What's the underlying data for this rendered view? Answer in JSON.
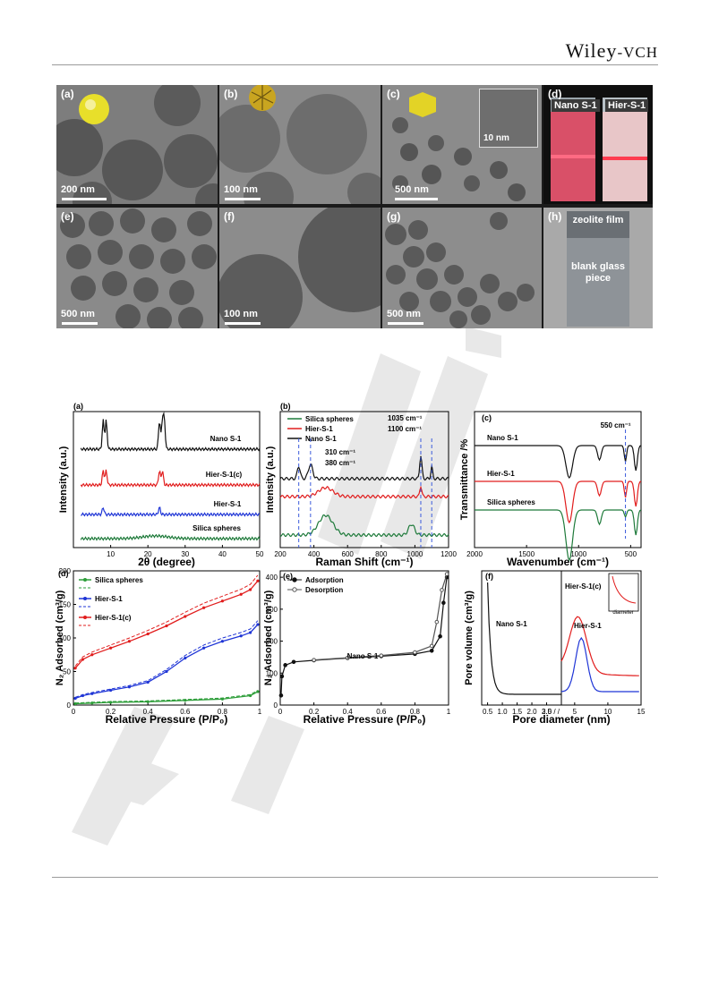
{
  "header": {
    "brand_main": "Wiley",
    "brand_suffix": "-VCH"
  },
  "micrographs": {
    "tiles": [
      {
        "label": "(a)",
        "scale": "200 nm"
      },
      {
        "label": "(b)",
        "scale": "100 nm"
      },
      {
        "label": "(c)",
        "scale": "500 nm",
        "inset_scale": "10 nm"
      },
      {
        "label": "(d)",
        "vials": [
          "Nano S-1",
          "Hier-S-1"
        ]
      },
      {
        "label": "(e)",
        "scale": "500 nm"
      },
      {
        "label": "(f)",
        "scale": "100 nm"
      },
      {
        "label": "(g)",
        "scale": "500 nm"
      },
      {
        "label": "(h)",
        "film": "zeolite film",
        "glass": "blank glass piece"
      }
    ]
  },
  "charts": {
    "a": {
      "label": "(a)",
      "xlabel": "2θ (degree)",
      "ylabel": "Intensity (a.u.)"
    },
    "b": {
      "label": "(b)",
      "xlabel": "Raman Shift (cm⁻¹)",
      "ylabel": "Intensity (a.u.)"
    },
    "c": {
      "label": "(c)",
      "xlabel": "Wavenumber (cm⁻¹)",
      "ylabel": "Transmittance /%"
    },
    "d": {
      "label": "(d)",
      "xlabel": "Relative Pressure (P/P₀)",
      "ylabel": "N₂ Adsorbed (cm³/g)"
    },
    "e": {
      "label": "(e)",
      "xlabel": "Relative Pressure (P/P₀)",
      "ylabel": "N₂ Adsorbed (cm³/g)"
    },
    "f": {
      "label": "(f)",
      "xlabel": "Pore diameter (nm)",
      "ylabel": "Pore volume (cm³/g)"
    }
  },
  "chart_data": [
    {
      "panel": "a",
      "type": "line",
      "xlim": [
        0,
        50
      ],
      "xticks": [
        10,
        20,
        30,
        40,
        50
      ],
      "series": [
        {
          "name": "Nano S-1",
          "color": "#111111",
          "peaks": [
            8,
            8.8,
            23.1,
            23.9,
            24.4
          ]
        },
        {
          "name": "Hier-S-1(c)",
          "color": "#e11d1d",
          "peaks": [
            8,
            8.8,
            23.1,
            23.9
          ]
        },
        {
          "name": "Hier-S-1",
          "color": "#1f35d6",
          "peaks": [
            8,
            23.1
          ]
        },
        {
          "name": "Silica spheres",
          "color": "#1e7a3a",
          "peaks": []
        }
      ]
    },
    {
      "panel": "b",
      "type": "line",
      "xlim": [
        200,
        1200
      ],
      "xticks": [
        200,
        400,
        600,
        800,
        1000,
        1200
      ],
      "series": [
        {
          "name": "Silica spheres",
          "color": "#1e7a3a"
        },
        {
          "name": "Hier-S-1",
          "color": "#e11d1d"
        },
        {
          "name": "Nano S-1",
          "color": "#111111"
        }
      ],
      "annotations": [
        "310 cm⁻¹",
        "380 cm⁻¹",
        "1035 cm⁻¹",
        "1100 cm⁻¹"
      ],
      "marker_lines": [
        310,
        380,
        1035,
        1100
      ]
    },
    {
      "panel": "c",
      "type": "line",
      "xlim": [
        2000,
        400
      ],
      "xticks": [
        2000,
        1500,
        1000,
        500
      ],
      "series": [
        {
          "name": "Nano S-1",
          "color": "#111111"
        },
        {
          "name": "Hier-S-1",
          "color": "#e11d1d"
        },
        {
          "name": "Silica spheres",
          "color": "#1e7a3a"
        }
      ],
      "annotations": [
        "550 cm⁻¹"
      ],
      "marker_lines": [
        550
      ]
    },
    {
      "panel": "d",
      "type": "line",
      "xlim": [
        0,
        1.0
      ],
      "ylim": [
        0,
        200
      ],
      "xticks": [
        0.0,
        0.2,
        0.4,
        0.6,
        0.8,
        1.0
      ],
      "yticks": [
        0,
        50,
        100,
        150,
        200
      ],
      "series": [
        {
          "name": "Silica spheres",
          "color": "#2e9e3a",
          "x": [
            0.01,
            0.1,
            0.2,
            0.4,
            0.6,
            0.8,
            0.95,
            0.99
          ],
          "y": [
            2,
            3,
            4,
            5,
            7,
            9,
            14,
            20
          ]
        },
        {
          "name": "Hier-S-1",
          "color": "#1f35d6",
          "x": [
            0.01,
            0.05,
            0.1,
            0.2,
            0.3,
            0.4,
            0.5,
            0.6,
            0.7,
            0.8,
            0.9,
            0.95,
            0.99
          ],
          "y": [
            10,
            14,
            17,
            22,
            27,
            34,
            50,
            70,
            85,
            95,
            103,
            108,
            120
          ]
        },
        {
          "name": "Hier-S-1(c)",
          "color": "#e11d1d",
          "x": [
            0.01,
            0.05,
            0.1,
            0.2,
            0.3,
            0.4,
            0.5,
            0.6,
            0.7,
            0.8,
            0.9,
            0.95,
            0.99
          ],
          "y": [
            55,
            68,
            75,
            85,
            95,
            106,
            118,
            132,
            145,
            155,
            165,
            172,
            185
          ]
        }
      ]
    },
    {
      "panel": "e",
      "type": "line",
      "xlim": [
        0,
        1.0
      ],
      "ylim": [
        0,
        420
      ],
      "xticks": [
        0.0,
        0.2,
        0.4,
        0.6,
        0.8,
        1.0
      ],
      "yticks": [
        0,
        100,
        200,
        300,
        400
      ],
      "annotation": "Nano S-1",
      "series": [
        {
          "name": "Adsorption",
          "color": "#111111",
          "x": [
            0.005,
            0.01,
            0.03,
            0.08,
            0.2,
            0.4,
            0.6,
            0.8,
            0.9,
            0.95,
            0.97,
            0.99
          ],
          "y": [
            30,
            90,
            125,
            135,
            140,
            147,
            153,
            160,
            170,
            215,
            320,
            400
          ]
        },
        {
          "name": "Desorption",
          "color": "#555555",
          "x": [
            0.2,
            0.4,
            0.6,
            0.8,
            0.9,
            0.93,
            0.96,
            0.99
          ],
          "y": [
            141,
            148,
            155,
            165,
            185,
            260,
            360,
            410
          ]
        }
      ]
    },
    {
      "panel": "f",
      "type": "line",
      "xlim": [
        0,
        15
      ],
      "xticks": [
        0.5,
        1.0,
        1.5,
        2.0,
        2.5,
        3.0,
        5,
        10,
        15
      ],
      "annotations": [
        "Nano S-1",
        "Hier-S-1(c)",
        "Hier-S-1",
        "diameter"
      ],
      "series": [
        {
          "name": "Nano S-1",
          "color": "#111111"
        },
        {
          "name": "Hier-S-1(c)",
          "color": "#e11d1d"
        },
        {
          "name": "Hier-S-1",
          "color": "#1f35d6"
        }
      ]
    }
  ]
}
